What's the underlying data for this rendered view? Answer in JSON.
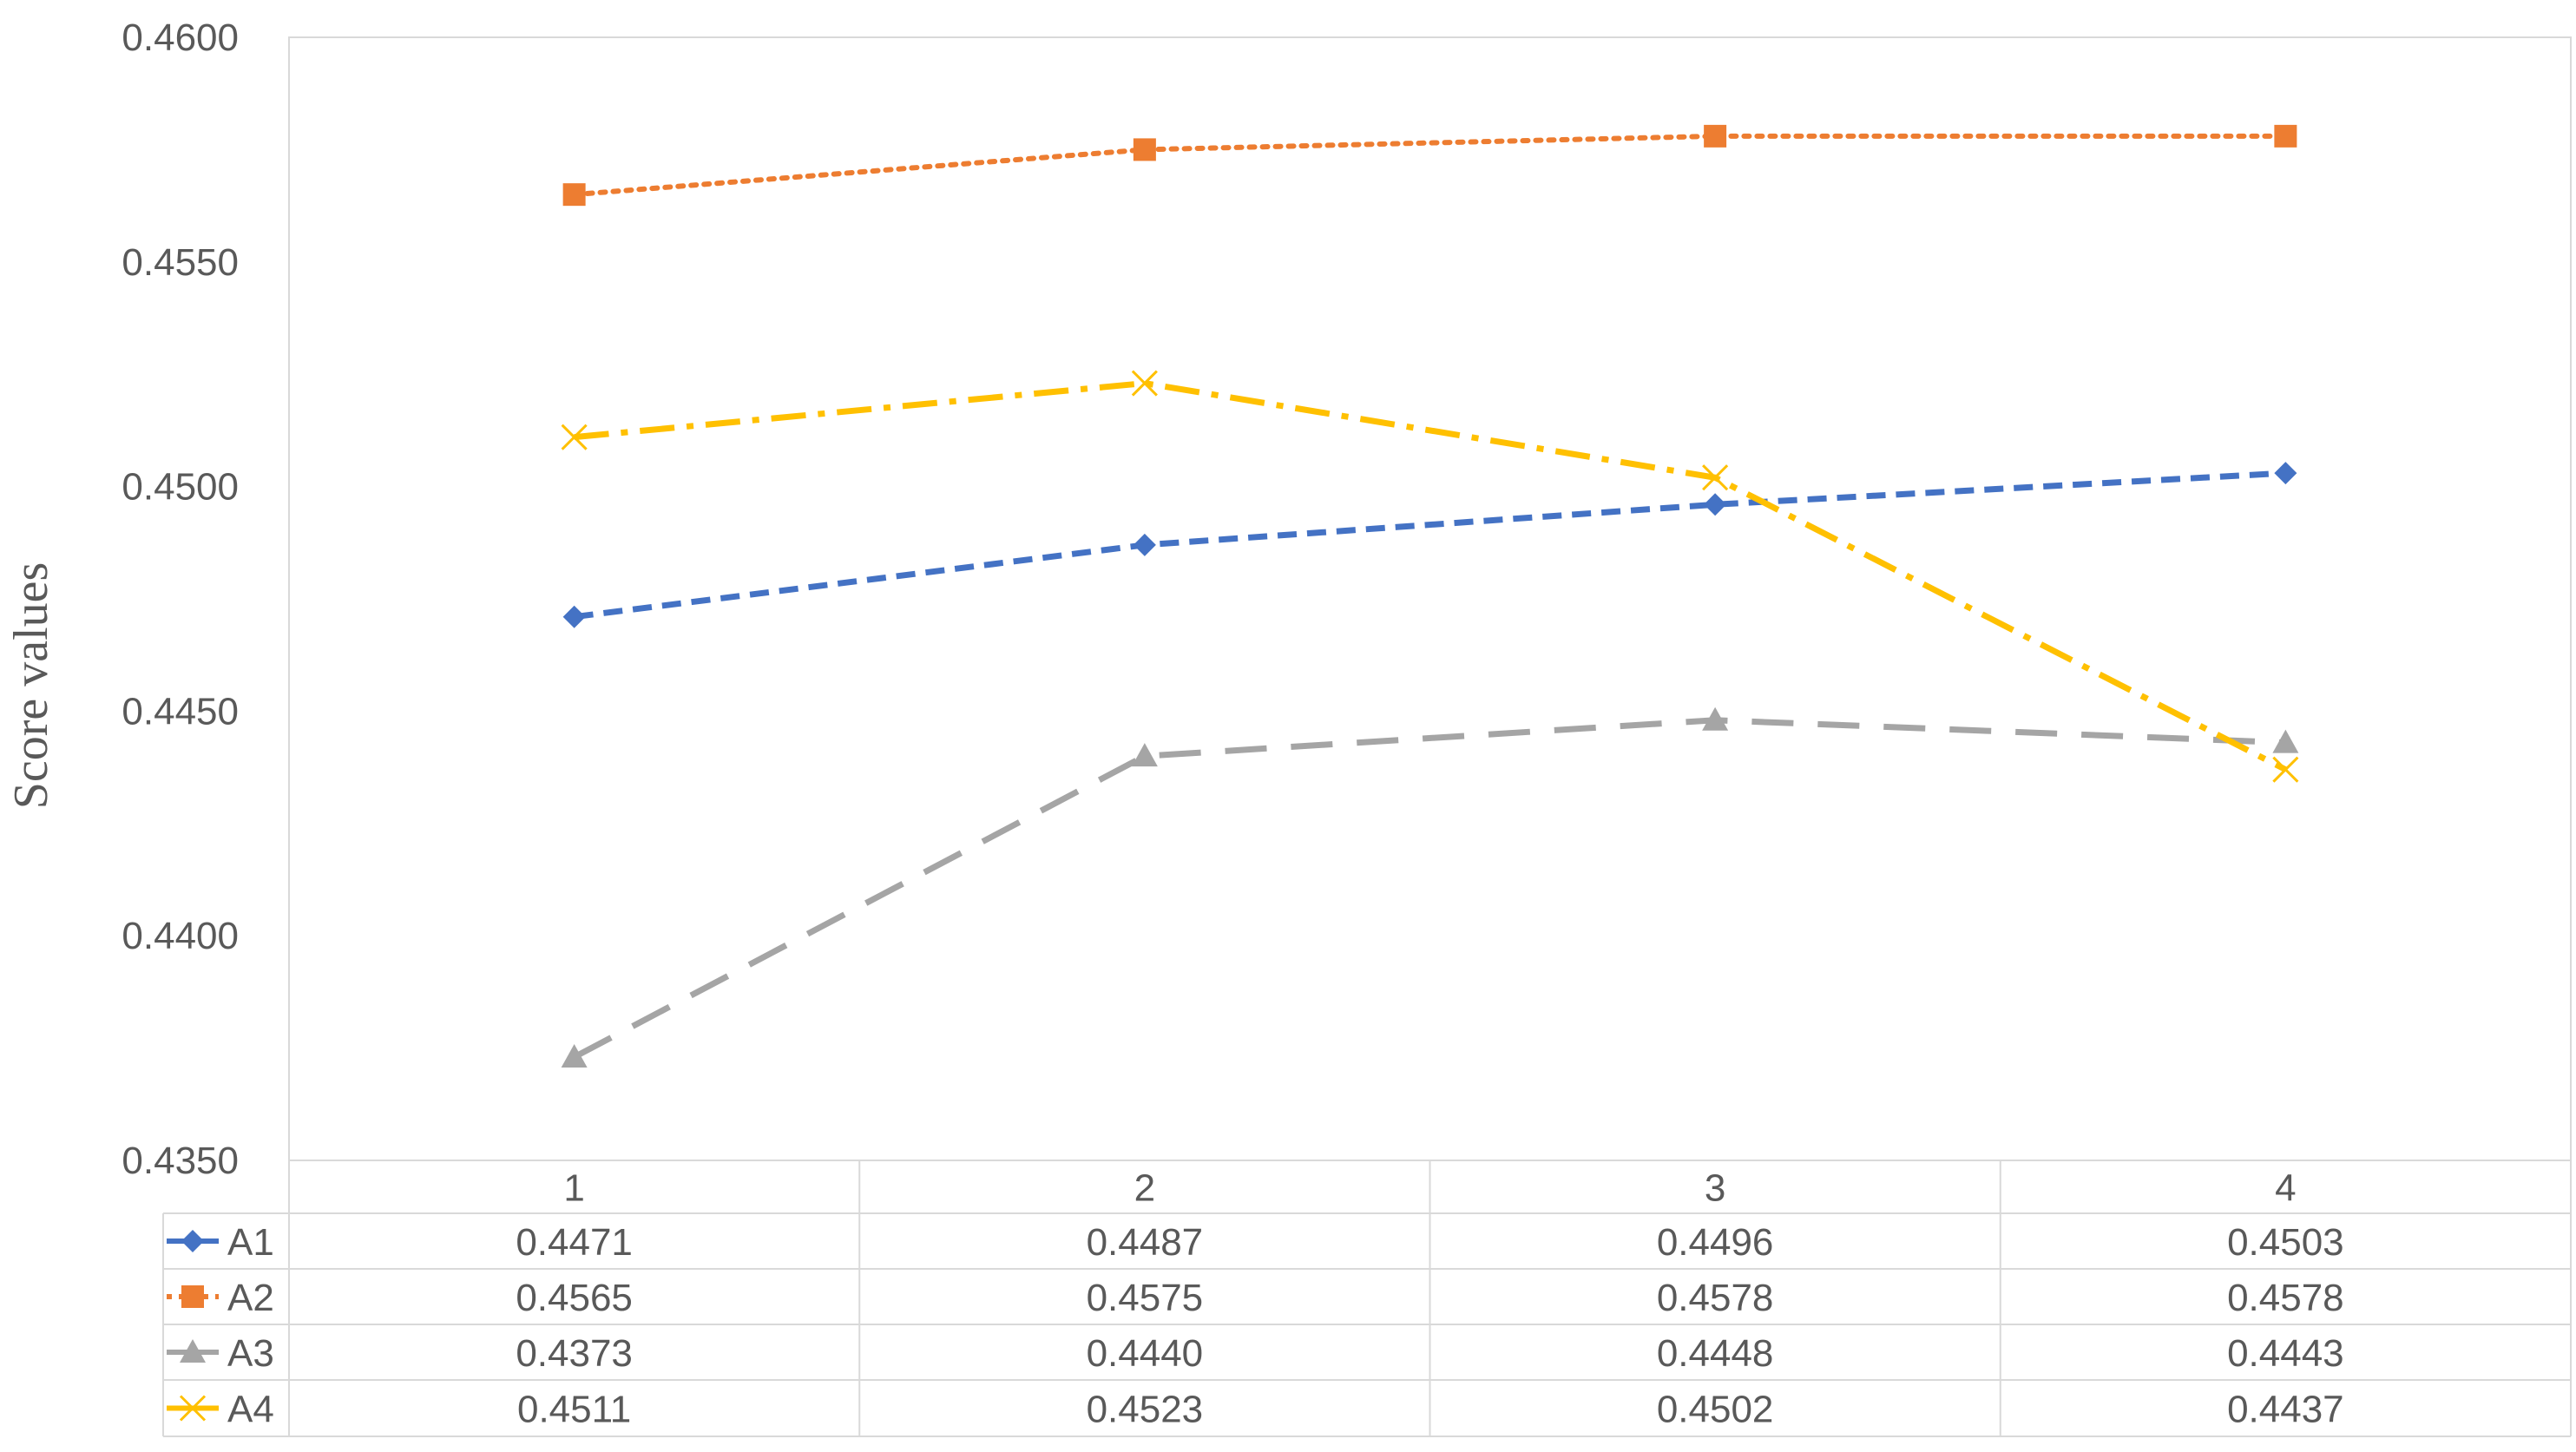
{
  "chart_data": {
    "type": "line",
    "title": "",
    "xlabel": "",
    "ylabel": "Score values",
    "ylim": [
      0.435,
      0.46
    ],
    "yticks": [
      "0.4350",
      "0.4400",
      "0.4450",
      "0.4500",
      "0.4550",
      "0.4600"
    ],
    "categories": [
      "1",
      "2",
      "3",
      "4"
    ],
    "grid": false,
    "legend": "data-table",
    "series": [
      {
        "name": "A1",
        "values": [
          0.4471,
          0.4487,
          0.4496,
          0.4503
        ],
        "labels": [
          "0.4471",
          "0.4487",
          "0.4496",
          "0.4503"
        ],
        "color": "#4472C4",
        "dash": "dashed",
        "marker": "diamond"
      },
      {
        "name": "A2",
        "values": [
          0.4565,
          0.4575,
          0.4578,
          0.4578
        ],
        "labels": [
          "0.4565",
          "0.4575",
          "0.4578",
          "0.4578"
        ],
        "color": "#ED7D31",
        "dash": "dotted",
        "marker": "square"
      },
      {
        "name": "A3",
        "values": [
          0.4373,
          0.444,
          0.4448,
          0.4443
        ],
        "labels": [
          "0.4373",
          "0.4440",
          "0.4448",
          "0.4443"
        ],
        "color": "#A5A5A5",
        "dash": "long-dash",
        "marker": "triangle"
      },
      {
        "name": "A4",
        "values": [
          0.4511,
          0.4523,
          0.4502,
          0.4437
        ],
        "labels": [
          "0.4511",
          "0.4523",
          "0.4502",
          "0.4437"
        ],
        "color": "#FFC000",
        "dash": "dash-dot",
        "marker": "x"
      }
    ]
  }
}
